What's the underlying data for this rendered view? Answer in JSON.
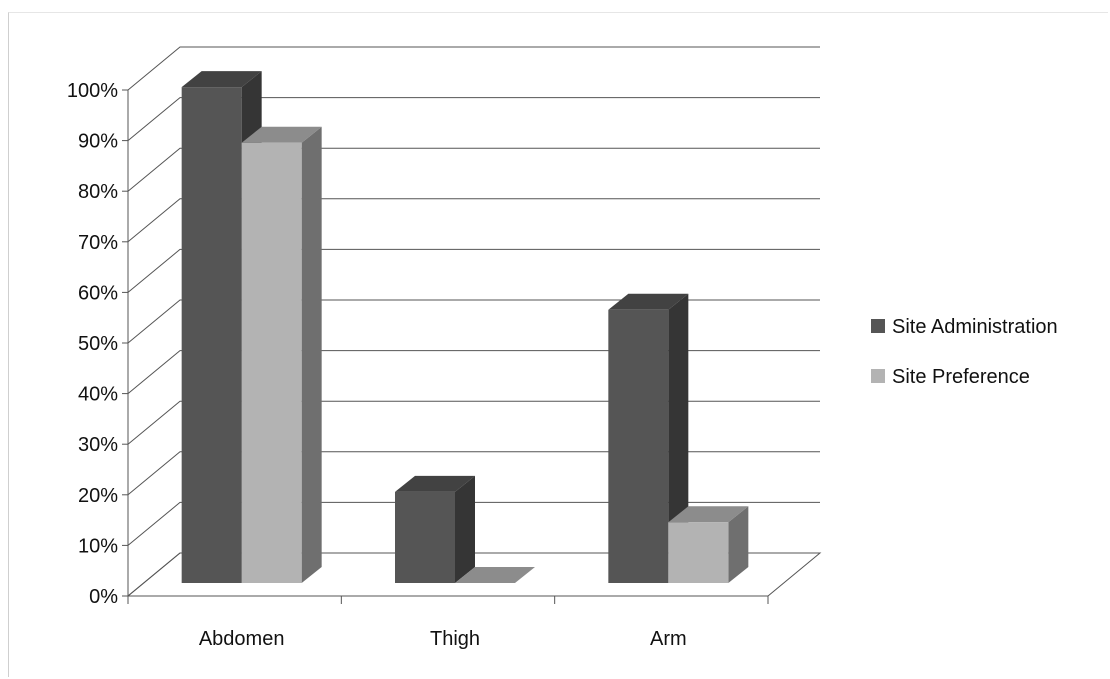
{
  "chart_data": {
    "type": "bar",
    "style": "3d-clustered-column",
    "categories": [
      "Abdomen",
      "Thigh",
      "Arm"
    ],
    "series": [
      {
        "name": "Site Administration",
        "values": [
          98,
          18,
          54
        ],
        "color": "#555555"
      },
      {
        "name": "Site Preference",
        "values": [
          87,
          0,
          12
        ],
        "color": "#b3b3b3"
      }
    ],
    "ylim": [
      0,
      100
    ],
    "y_ticks": [
      "0%",
      "10%",
      "20%",
      "30%",
      "40%",
      "50%",
      "60%",
      "70%",
      "80%",
      "90%",
      "100%"
    ],
    "grid": true,
    "legend_position": "right"
  }
}
